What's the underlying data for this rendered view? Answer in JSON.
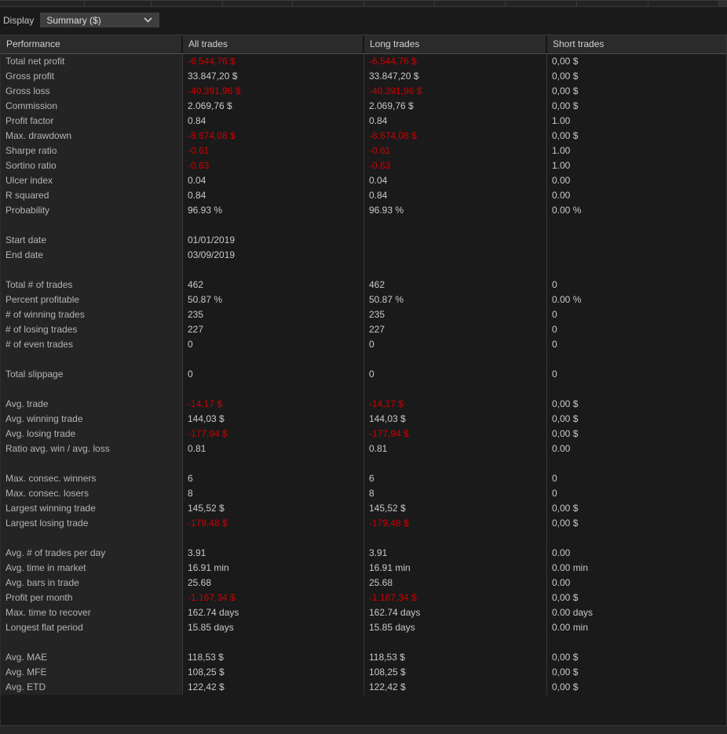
{
  "toolbar": {
    "display_label": "Display",
    "display_value": "Summary ($)"
  },
  "table": {
    "columns": [
      "Performance",
      "All trades",
      "Long trades",
      "Short trades"
    ],
    "rows": [
      {
        "label": "Total net profit",
        "all": "-6.544,76 $",
        "long": "-6.544,76 $",
        "short": "0,00 $"
      },
      {
        "label": "Gross profit",
        "all": "33.847,20 $",
        "long": "33.847,20 $",
        "short": "0,00 $"
      },
      {
        "label": "Gross loss",
        "all": "-40.391,96 $",
        "long": "-40.391,96 $",
        "short": "0,00 $"
      },
      {
        "label": "Commission",
        "all": "2.069,76 $",
        "long": "2.069,76 $",
        "short": "0,00 $"
      },
      {
        "label": "Profit factor",
        "all": "0.84",
        "long": "0.84",
        "short": "1.00"
      },
      {
        "label": "Max. drawdown",
        "all": "-8.674,08 $",
        "long": "-8.674,08 $",
        "short": "0,00 $"
      },
      {
        "label": "Sharpe ratio",
        "all": "-0.61",
        "long": "-0.61",
        "short": "1.00"
      },
      {
        "label": "Sortino ratio",
        "all": "-0.63",
        "long": "-0.63",
        "short": "1.00"
      },
      {
        "label": "Ulcer index",
        "all": "0.04",
        "long": "0.04",
        "short": "0.00"
      },
      {
        "label": "R squared",
        "all": "0.84",
        "long": "0.84",
        "short": "0.00"
      },
      {
        "label": "Probability",
        "all": "96.93 %",
        "long": "96.93 %",
        "short": "0.00 %"
      },
      {
        "label": "",
        "all": "",
        "long": "",
        "short": ""
      },
      {
        "label": "Start date",
        "all": "01/01/2019",
        "long": "",
        "short": ""
      },
      {
        "label": "End date",
        "all": "03/09/2019",
        "long": "",
        "short": ""
      },
      {
        "label": "",
        "all": "",
        "long": "",
        "short": ""
      },
      {
        "label": "Total # of trades",
        "all": "462",
        "long": "462",
        "short": "0"
      },
      {
        "label": "Percent profitable",
        "all": "50.87 %",
        "long": "50.87 %",
        "short": "0.00 %"
      },
      {
        "label": "# of winning trades",
        "all": "235",
        "long": "235",
        "short": "0"
      },
      {
        "label": "# of losing trades",
        "all": "227",
        "long": "227",
        "short": "0"
      },
      {
        "label": "# of even trades",
        "all": "0",
        "long": "0",
        "short": "0"
      },
      {
        "label": "",
        "all": "",
        "long": "",
        "short": ""
      },
      {
        "label": "Total slippage",
        "all": "0",
        "long": "0",
        "short": "0"
      },
      {
        "label": "",
        "all": "",
        "long": "",
        "short": ""
      },
      {
        "label": "Avg. trade",
        "all": "-14,17 $",
        "long": "-14,17 $",
        "short": "0,00 $"
      },
      {
        "label": "Avg. winning trade",
        "all": "144,03 $",
        "long": "144,03 $",
        "short": "0,00 $"
      },
      {
        "label": "Avg. losing trade",
        "all": "-177,94 $",
        "long": "-177,94 $",
        "short": "0,00 $"
      },
      {
        "label": "Ratio avg. win / avg. loss",
        "all": "0.81",
        "long": "0.81",
        "short": "0.00"
      },
      {
        "label": "",
        "all": "",
        "long": "",
        "short": ""
      },
      {
        "label": "Max. consec. winners",
        "all": "6",
        "long": "6",
        "short": "0"
      },
      {
        "label": "Max. consec. losers",
        "all": "8",
        "long": "8",
        "short": "0"
      },
      {
        "label": "Largest winning trade",
        "all": "145,52 $",
        "long": "145,52 $",
        "short": "0,00 $"
      },
      {
        "label": "Largest losing trade",
        "all": "-179,48 $",
        "long": "-179,48 $",
        "short": "0,00 $"
      },
      {
        "label": "",
        "all": "",
        "long": "",
        "short": ""
      },
      {
        "label": "Avg. # of trades per day",
        "all": "3.91",
        "long": "3.91",
        "short": "0.00"
      },
      {
        "label": "Avg. time in market",
        "all": "16.91 min",
        "long": "16.91 min",
        "short": "0.00 min"
      },
      {
        "label": "Avg. bars in trade",
        "all": "25.68",
        "long": "25.68",
        "short": "0.00"
      },
      {
        "label": "Profit per month",
        "all": "-1.167,34 $",
        "long": "-1.167,34 $",
        "short": "0,00 $"
      },
      {
        "label": "Max. time to recover",
        "all": "162.74 days",
        "long": "162.74 days",
        "short": "0.00 days"
      },
      {
        "label": "Longest flat period",
        "all": "15.85 days",
        "long": "15.85 days",
        "short": "0.00 min"
      },
      {
        "label": "",
        "all": "",
        "long": "",
        "short": ""
      },
      {
        "label": "Avg. MAE",
        "all": "118,53 $",
        "long": "118,53 $",
        "short": "0,00 $"
      },
      {
        "label": "Avg. MFE",
        "all": "108,25 $",
        "long": "108,25 $",
        "short": "0,00 $"
      },
      {
        "label": "Avg. ETD",
        "all": "122,42 $",
        "long": "122,42 $",
        "short": "0,00 $"
      }
    ]
  },
  "colors": {
    "negative_value": "#cc0000"
  }
}
